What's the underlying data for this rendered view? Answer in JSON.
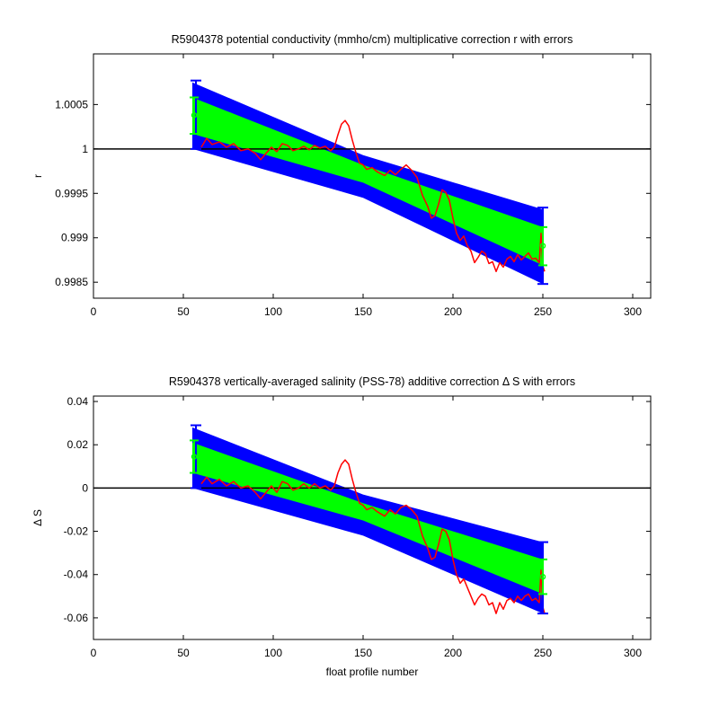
{
  "chart_data": [
    {
      "type": "line",
      "title": "R5904378 potential conductivity (mmho/cm) multiplicative correction r with errors",
      "xlabel": "",
      "ylabel": "r",
      "xlim": [
        0,
        310
      ],
      "ylim": [
        0.99832,
        1.00107
      ],
      "xticks": [
        0,
        50,
        100,
        150,
        200,
        250,
        300
      ],
      "xtick_labels": [
        "0",
        "50",
        "100",
        "150",
        "200",
        "250",
        "300"
      ],
      "yticks": [
        0.9985,
        0.999,
        0.9995,
        1,
        1.0005
      ],
      "ytick_labels": [
        "0.9985",
        "0.999",
        "0.9995",
        "1",
        "1.0005"
      ],
      "grid": false,
      "reference_line": 1,
      "colors": {
        "outer_band": "#0000ff",
        "inner_band": "#00ff00",
        "series": "#ff0000",
        "axes": "#000000"
      },
      "bands": [
        {
          "color": "outer_band",
          "x": [
            55,
            150,
            250
          ],
          "upper": [
            1.00075,
            0.99993,
            0.99932
          ],
          "lower": [
            1.0,
            0.99945,
            0.99848
          ]
        },
        {
          "color": "inner_band",
          "x": [
            55,
            150,
            250
          ],
          "upper": [
            1.00058,
            0.99982,
            0.99912
          ],
          "lower": [
            1.00017,
            0.99962,
            0.99869
          ]
        }
      ],
      "end_errorbars": [
        {
          "x": 55,
          "outer": [
            1.0,
            1.00077
          ],
          "inner": [
            1.00017,
            1.00058
          ],
          "center": 1.00038
        },
        {
          "x": 250,
          "outer": [
            0.99848,
            0.99934
          ],
          "inner": [
            0.99869,
            0.99912
          ],
          "center": 0.99891
        }
      ],
      "series": [
        {
          "x": [
            60,
            63,
            66,
            70,
            74,
            78,
            82,
            86,
            90,
            93,
            96,
            99,
            102,
            105,
            108,
            111,
            114,
            117,
            120,
            123,
            126,
            129,
            132,
            134,
            136,
            138,
            140,
            142,
            144,
            146,
            148,
            150,
            152,
            155,
            158,
            162,
            165,
            168,
            171,
            174,
            177,
            180,
            183,
            186,
            188,
            190,
            192,
            194,
            196,
            198,
            200,
            202,
            204,
            206,
            208,
            210,
            212,
            214,
            216,
            218,
            220,
            222,
            224,
            226,
            228,
            230,
            232,
            234,
            236,
            238,
            240,
            242,
            244,
            246,
            248,
            249,
            250,
            251
          ],
          "y": [
            1.00002,
            1.00012,
            1.00005,
            1.00008,
            1.00002,
            1.00006,
            0.99998,
            1.0,
            0.99995,
            0.99988,
            0.99995,
            1.00002,
            0.99997,
            1.00006,
            1.00004,
            0.99998,
            1.0,
            1.00003,
            0.99999,
            1.00004,
            1.00001,
            1.00003,
            0.99998,
            1.00002,
            1.00016,
            1.00028,
            1.00032,
            1.00026,
            1.0001,
            0.99996,
            0.99984,
            0.99982,
            0.99977,
            0.99979,
            0.99974,
            0.9997,
            0.99976,
            0.99971,
            0.99977,
            0.99982,
            0.99976,
            0.99968,
            0.99948,
            0.99935,
            0.99922,
            0.99925,
            0.99938,
            0.99954,
            0.99951,
            0.99942,
            0.99922,
            0.99905,
            0.99897,
            0.99902,
            0.99891,
            0.99885,
            0.99872,
            0.99878,
            0.99885,
            0.99882,
            0.99871,
            0.99873,
            0.99862,
            0.99872,
            0.99867,
            0.99876,
            0.99879,
            0.99873,
            0.99881,
            0.99875,
            0.99879,
            0.99883,
            0.99876,
            0.99877,
            0.99872,
            0.99905,
            0.99868,
            0.99862
          ]
        }
      ]
    },
    {
      "type": "line",
      "title": "R5904378 vertically-averaged salinity (PSS-78) additive correction Δ S with errors",
      "xlabel": "float profile number",
      "ylabel": "Δ S",
      "xlim": [
        0,
        310
      ],
      "ylim": [
        -0.07,
        0.0425
      ],
      "xticks": [
        0,
        50,
        100,
        150,
        200,
        250,
        300
      ],
      "xtick_labels": [
        "0",
        "50",
        "100",
        "150",
        "200",
        "250",
        "300"
      ],
      "yticks": [
        -0.06,
        -0.04,
        -0.02,
        0,
        0.02,
        0.04
      ],
      "ytick_labels": [
        "-0.06",
        "-0.04",
        "-0.02",
        "0",
        "0.02",
        "0.04"
      ],
      "grid": false,
      "reference_line": 0,
      "colors": {
        "outer_band": "#0000ff",
        "inner_band": "#00ff00",
        "series": "#ff0000",
        "axes": "#000000"
      },
      "bands": [
        {
          "color": "outer_band",
          "x": [
            55,
            150,
            250
          ],
          "upper": [
            0.028,
            -0.003,
            -0.025
          ],
          "lower": [
            0.0,
            -0.022,
            -0.058
          ]
        },
        {
          "color": "inner_band",
          "x": [
            55,
            150,
            250
          ],
          "upper": [
            0.021,
            -0.007,
            -0.033
          ],
          "lower": [
            0.007,
            -0.015,
            -0.049
          ]
        }
      ],
      "end_errorbars": [
        {
          "x": 55,
          "outer": [
            0.0,
            0.029
          ],
          "inner": [
            0.007,
            0.022
          ],
          "center": 0.0145
        },
        {
          "x": 250,
          "outer": [
            -0.058,
            -0.025
          ],
          "inner": [
            -0.049,
            -0.033
          ],
          "center": -0.041
        }
      ],
      "series": [
        {
          "x": [
            60,
            63,
            66,
            70,
            74,
            78,
            82,
            86,
            90,
            93,
            96,
            99,
            102,
            105,
            108,
            111,
            114,
            117,
            120,
            123,
            126,
            129,
            132,
            134,
            136,
            138,
            140,
            142,
            144,
            146,
            148,
            150,
            152,
            155,
            158,
            162,
            165,
            168,
            171,
            174,
            177,
            180,
            183,
            186,
            188,
            190,
            192,
            194,
            196,
            198,
            200,
            202,
            204,
            206,
            208,
            210,
            212,
            214,
            216,
            218,
            220,
            222,
            224,
            226,
            228,
            230,
            232,
            234,
            236,
            238,
            240,
            242,
            244,
            246,
            248,
            249,
            250,
            251
          ],
          "y": [
            0.002,
            0.005,
            0.002,
            0.004,
            0.001,
            0.003,
            0.0,
            0.001,
            -0.002,
            -0.005,
            -0.002,
            0.001,
            -0.002,
            0.003,
            0.002,
            -0.001,
            0.0,
            0.002,
            0.0,
            0.002,
            0.0,
            0.001,
            -0.001,
            0.001,
            0.007,
            0.011,
            0.013,
            0.011,
            0.004,
            -0.002,
            -0.007,
            -0.008,
            -0.01,
            -0.009,
            -0.011,
            -0.013,
            -0.01,
            -0.012,
            -0.009,
            -0.008,
            -0.01,
            -0.013,
            -0.022,
            -0.028,
            -0.033,
            -0.032,
            -0.026,
            -0.019,
            -0.02,
            -0.024,
            -0.033,
            -0.04,
            -0.044,
            -0.042,
            -0.046,
            -0.05,
            -0.054,
            -0.051,
            -0.049,
            -0.05,
            -0.054,
            -0.053,
            -0.058,
            -0.053,
            -0.056,
            -0.052,
            -0.051,
            -0.053,
            -0.05,
            -0.052,
            -0.05,
            -0.049,
            -0.052,
            -0.051,
            -0.053,
            -0.038,
            -0.055,
            -0.058
          ]
        }
      ]
    }
  ]
}
